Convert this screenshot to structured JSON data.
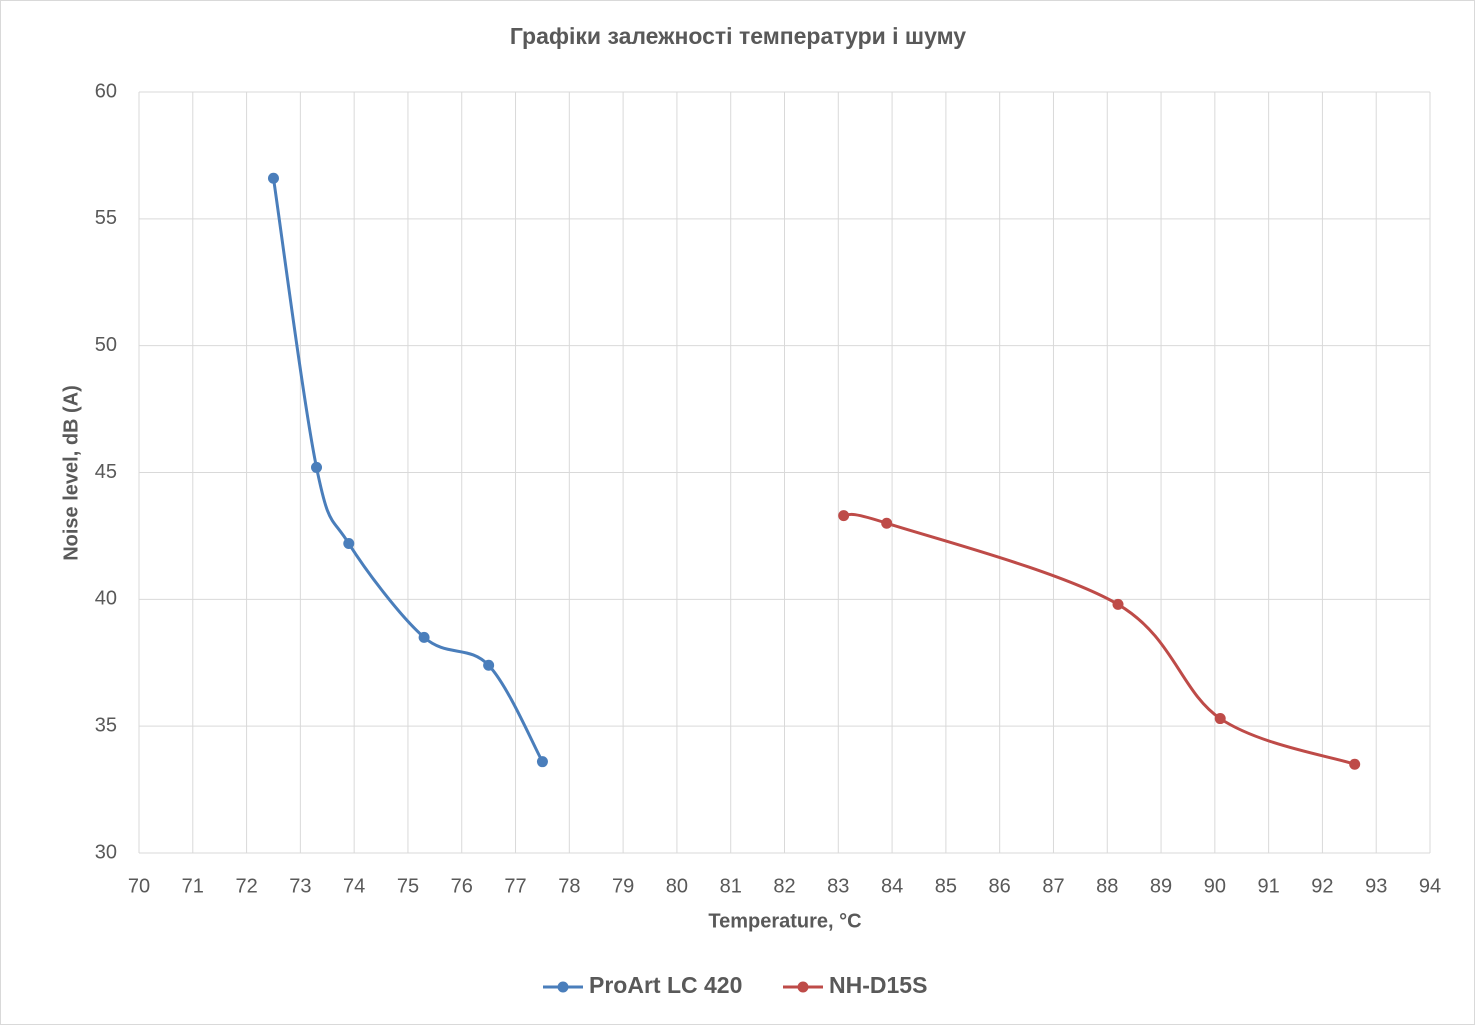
{
  "chart_data": {
    "type": "line",
    "title": "Графіки залежності температури і шуму",
    "x_label": "Temperature, °C",
    "y_label": "Noise level, dB (A)",
    "smooth": true,
    "grid": true,
    "legend": "bottom",
    "xlim": [
      70,
      94
    ],
    "xticks": [
      70,
      71,
      72,
      73,
      74,
      75,
      76,
      77,
      78,
      79,
      80,
      81,
      82,
      83,
      84,
      85,
      86,
      87,
      88,
      89,
      90,
      91,
      92,
      93,
      94
    ],
    "ylim": [
      30,
      60
    ],
    "yticks": [
      30,
      35,
      40,
      45,
      50,
      55,
      60
    ],
    "series": [
      {
        "name": "ProArt LC 420",
        "color": "#4a7ebb",
        "x": [
          72.5,
          73.3,
          73.9,
          75.3,
          76.5,
          77.5
        ],
        "values": [
          56.6,
          45.2,
          42.2,
          38.5,
          37.4,
          33.6
        ]
      },
      {
        "name": "NH-D15S",
        "color": "#be4b48",
        "x": [
          83.1,
          83.9,
          88.2,
          90.1,
          92.6
        ],
        "values": [
          43.3,
          43.0,
          39.8,
          35.3,
          33.5
        ]
      }
    ]
  }
}
